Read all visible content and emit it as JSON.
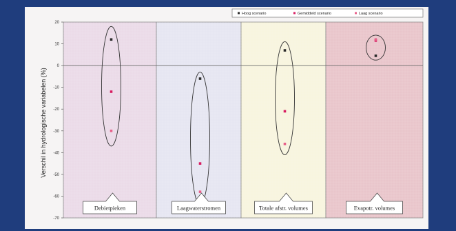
{
  "colors": {
    "background": "#1f3d7d",
    "high": "#2a2a2a",
    "mean": "#e0306a",
    "low": "#e55a7a"
  },
  "chart_data": {
    "type": "scatter",
    "title": "",
    "ylabel": "Verschil in hydrologische variabelen (%)",
    "ylim": [
      -70,
      20
    ],
    "yticks": [
      20,
      10,
      0,
      -10,
      -20,
      -30,
      -40,
      -50,
      -60,
      -70
    ],
    "categories": [
      "Debietpieken",
      "Laagwaterstromen",
      "Totale afstr. volumes",
      "Evapotr. volumes"
    ],
    "panel_colors": [
      "#ebdbe8",
      "#e6e6f2",
      "#f8f5df",
      "#e9c5cb"
    ],
    "legend_position": "top-right",
    "series": [
      {
        "name": "Hoog scenario",
        "marker": "#2a2a2a",
        "values": [
          12,
          -6,
          7,
          4.5
        ]
      },
      {
        "name": "Gemiddeld scenario",
        "marker": "#d81b60",
        "values": [
          -12,
          -45,
          -21,
          11.5
        ]
      },
      {
        "name": "Laag scenario",
        "marker": "#e8608a",
        "values": [
          -30,
          -58,
          -36,
          12
        ]
      }
    ],
    "ellipse_ranges": [
      [
        -37,
        18
      ],
      [
        -64,
        -3
      ],
      [
        -41,
        11
      ],
      [
        2.5,
        14
      ]
    ]
  }
}
